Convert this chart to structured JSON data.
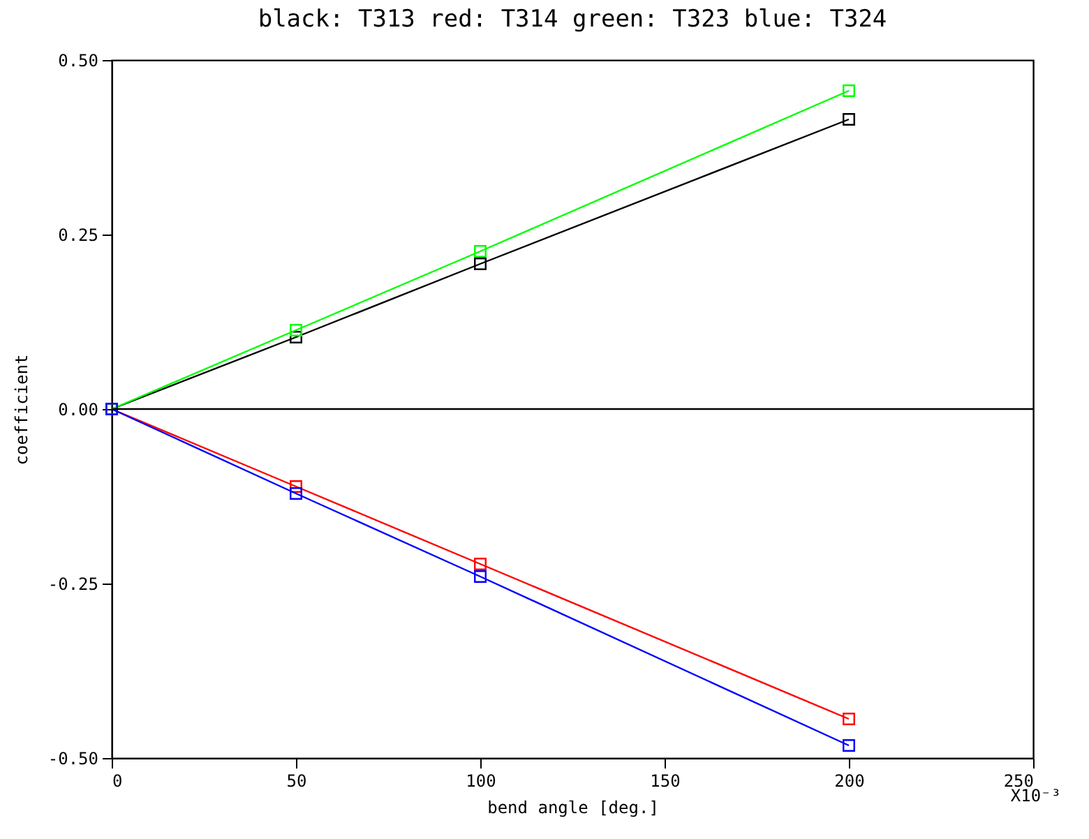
{
  "chart_data": {
    "type": "line",
    "title": "black: T313 red: T314 green: T323 blue: T324",
    "xlabel": "bend angle [deg.]",
    "ylabel": "coefficient",
    "x": [
      0,
      50,
      100,
      200
    ],
    "series": [
      {
        "color": "#000000",
        "values": [
          0,
          0.103,
          0.208,
          0.415
        ]
      },
      {
        "color": "#ff0000",
        "values": [
          0,
          -0.111,
          -0.222,
          -0.444
        ]
      },
      {
        "color": "#00ff00",
        "values": [
          0,
          0.113,
          0.226,
          0.456
        ]
      },
      {
        "color": "#0000ff",
        "values": [
          0,
          -0.121,
          -0.24,
          -0.482
        ]
      }
    ],
    "xlim": [
      0,
      250
    ],
    "xticks": [
      0,
      50,
      100,
      150,
      200,
      250
    ],
    "ylim": [
      -0.5,
      0.5
    ],
    "yticks": [
      {
        "value": -0.5,
        "label": "-0.50"
      },
      {
        "value": -0.25,
        "label": "-0.25"
      },
      {
        "value": 0,
        "label": "0.00"
      },
      {
        "value": 0.25,
        "label": "0.25"
      },
      {
        "value": 0.5,
        "label": "0.50"
      }
    ],
    "ref_lines": [
      {
        "axis": "y",
        "value": 0,
        "color": "#000000"
      }
    ],
    "annotations": [
      "X10⁻³"
    ],
    "marker": "square",
    "line_style": "solid",
    "grid": false
  }
}
